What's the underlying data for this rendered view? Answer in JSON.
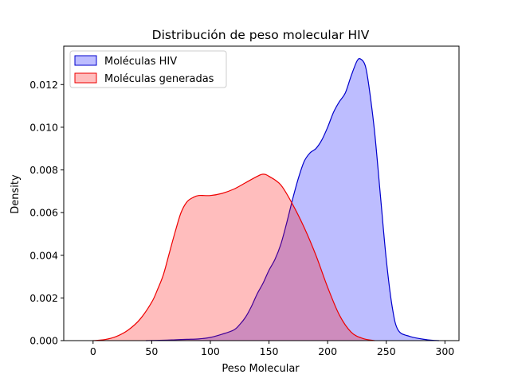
{
  "chart_data": {
    "type": "area",
    "title": "Distribución de peso molecular HIV",
    "xlabel": "Peso Molecular",
    "ylabel": "Density",
    "xlim": [
      -25,
      312
    ],
    "ylim": [
      0,
      0.0138
    ],
    "xticks": [
      0,
      50,
      100,
      150,
      200,
      250,
      300
    ],
    "yticks": [
      0.0,
      0.002,
      0.004,
      0.006,
      0.008,
      0.01,
      0.012
    ],
    "ytick_labels": [
      "0.000",
      "0.002",
      "0.004",
      "0.006",
      "0.008",
      "0.010",
      "0.012"
    ],
    "legend_position": "upper-left",
    "grid": false,
    "series": [
      {
        "name": "Moléculas HIV",
        "color": "#0000cc",
        "fill": "#0000ff",
        "points": [
          [
            45,
            0
          ],
          [
            60,
            2e-05
          ],
          [
            70,
            4e-05
          ],
          [
            80,
            6e-05
          ],
          [
            90,
            8e-05
          ],
          [
            100,
            0.00015
          ],
          [
            110,
            0.0003
          ],
          [
            120,
            0.0005
          ],
          [
            125,
            0.00075
          ],
          [
            130,
            0.0011
          ],
          [
            135,
            0.0016
          ],
          [
            140,
            0.0022
          ],
          [
            145,
            0.0027
          ],
          [
            150,
            0.0033
          ],
          [
            155,
            0.0038
          ],
          [
            160,
            0.0045
          ],
          [
            165,
            0.0055
          ],
          [
            170,
            0.0066
          ],
          [
            175,
            0.0076
          ],
          [
            180,
            0.0084
          ],
          [
            185,
            0.0088
          ],
          [
            190,
            0.009
          ],
          [
            195,
            0.0094
          ],
          [
            200,
            0.01
          ],
          [
            205,
            0.0107
          ],
          [
            210,
            0.0112
          ],
          [
            215,
            0.0116
          ],
          [
            220,
            0.0124
          ],
          [
            225,
            0.0131
          ],
          [
            228,
            0.0132
          ],
          [
            232,
            0.0129
          ],
          [
            235,
            0.012
          ],
          [
            240,
            0.0098
          ],
          [
            245,
            0.0068
          ],
          [
            250,
            0.0038
          ],
          [
            255,
            0.0016
          ],
          [
            260,
            0.0005
          ],
          [
            270,
            0.0002
          ],
          [
            285,
            4e-05
          ],
          [
            295,
            0
          ]
        ]
      },
      {
        "name": "Moléculas generadas",
        "color": "#ee0000",
        "fill": "#ff0000",
        "points": [
          [
            0,
            0
          ],
          [
            10,
            5e-05
          ],
          [
            20,
            0.0002
          ],
          [
            30,
            0.0005
          ],
          [
            40,
            0.001
          ],
          [
            50,
            0.0018
          ],
          [
            55,
            0.0024
          ],
          [
            60,
            0.0031
          ],
          [
            65,
            0.0041
          ],
          [
            70,
            0.0051
          ],
          [
            75,
            0.006
          ],
          [
            80,
            0.0065
          ],
          [
            85,
            0.0067
          ],
          [
            90,
            0.0068
          ],
          [
            100,
            0.0068
          ],
          [
            110,
            0.0069
          ],
          [
            120,
            0.0071
          ],
          [
            130,
            0.0074
          ],
          [
            140,
            0.0077
          ],
          [
            145,
            0.0078
          ],
          [
            150,
            0.0077
          ],
          [
            160,
            0.0073
          ],
          [
            170,
            0.0064
          ],
          [
            180,
            0.0053
          ],
          [
            190,
            0.004
          ],
          [
            200,
            0.0025
          ],
          [
            210,
            0.0012
          ],
          [
            220,
            0.0004
          ],
          [
            230,
            0.0001
          ],
          [
            240,
            0
          ]
        ]
      }
    ]
  }
}
